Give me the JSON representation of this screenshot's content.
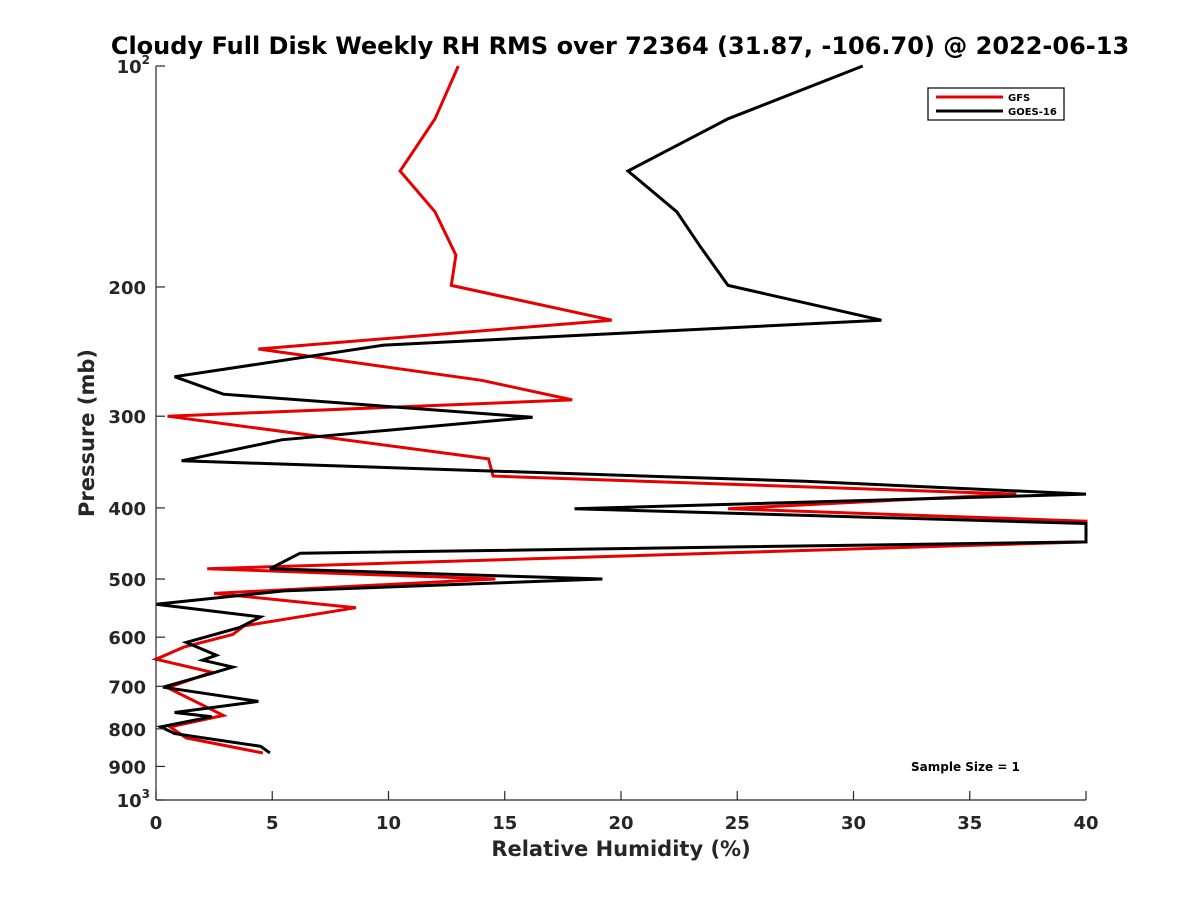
{
  "chart_data": {
    "type": "line",
    "title": "Cloudy Full Disk Weekly RH RMS over 72364 (31.87, -106.70) @ 2022-06-13",
    "xlabel": "Relative Humidity (%)",
    "ylabel": "Pressure (mb)",
    "xlim": [
      0,
      40
    ],
    "ylim": [
      100,
      1000
    ],
    "y_scale": "log",
    "y_reversed": true,
    "grid": false,
    "legend_position": "top-right",
    "x_ticks": [
      "0",
      "5",
      "10",
      "15",
      "20",
      "25",
      "30",
      "35",
      "40"
    ],
    "y_ticks": [
      {
        "value": 100,
        "label": "10",
        "exp": "2"
      },
      {
        "value": 200,
        "label": "200",
        "exp": ""
      },
      {
        "value": 300,
        "label": "300",
        "exp": ""
      },
      {
        "value": 400,
        "label": "400",
        "exp": ""
      },
      {
        "value": 500,
        "label": "500",
        "exp": ""
      },
      {
        "value": 600,
        "label": "600",
        "exp": ""
      },
      {
        "value": 700,
        "label": "700",
        "exp": ""
      },
      {
        "value": 800,
        "label": "800",
        "exp": ""
      },
      {
        "value": 900,
        "label": "900",
        "exp": ""
      },
      {
        "value": 1000,
        "label": "10",
        "exp": "3"
      }
    ],
    "annotation": "Sample Size = 1",
    "series": [
      {
        "name": "GFS",
        "color": "#e60000",
        "points": [
          [
            13.0,
            100
          ],
          [
            12.0,
            118
          ],
          [
            10.5,
            139
          ],
          [
            12.0,
            158
          ],
          [
            12.9,
            181
          ],
          [
            12.7,
            199
          ],
          [
            19.6,
            222
          ],
          [
            4.4,
            243
          ],
          [
            14.0,
            268
          ],
          [
            17.9,
            285
          ],
          [
            0.5,
            300
          ],
          [
            14.3,
            343
          ],
          [
            14.5,
            362
          ],
          [
            37.0,
            383
          ],
          [
            24.6,
            401
          ],
          [
            40.0,
            417
          ],
          [
            40.0,
            445
          ],
          [
            2.2,
            484
          ],
          [
            14.6,
            500
          ],
          [
            2.5,
            523
          ],
          [
            8.6,
            547
          ],
          [
            3.8,
            579
          ],
          [
            3.3,
            595
          ],
          [
            1.2,
            619
          ],
          [
            0.0,
            643
          ],
          [
            2.4,
            670
          ],
          [
            0.5,
            703
          ],
          [
            2.9,
            767
          ],
          [
            0.6,
            795
          ],
          [
            1.3,
            823
          ],
          [
            4.6,
            863
          ]
        ]
      },
      {
        "name": "GOES-16",
        "color": "#000000",
        "points": [
          [
            30.4,
            100
          ],
          [
            24.6,
            118
          ],
          [
            20.3,
            139
          ],
          [
            22.4,
            158
          ],
          [
            23.4,
            176
          ],
          [
            24.6,
            199
          ],
          [
            31.2,
            222
          ],
          [
            9.8,
            240
          ],
          [
            0.8,
            265
          ],
          [
            2.9,
            280
          ],
          [
            16.2,
            301
          ],
          [
            5.4,
            323
          ],
          [
            1.1,
            345
          ],
          [
            27.9,
            368
          ],
          [
            40.0,
            383
          ],
          [
            18.0,
            401
          ],
          [
            40.0,
            420
          ],
          [
            40.0,
            445
          ],
          [
            6.2,
            461
          ],
          [
            4.9,
            484
          ],
          [
            19.2,
            500
          ],
          [
            5.5,
            519
          ],
          [
            0.0,
            541
          ],
          [
            4.5,
            563
          ],
          [
            3.6,
            582
          ],
          [
            1.3,
            610
          ],
          [
            2.6,
            635
          ],
          [
            2.0,
            645
          ],
          [
            3.3,
            659
          ],
          [
            2.4,
            672
          ],
          [
            0.3,
            702
          ],
          [
            4.4,
            734
          ],
          [
            0.8,
            760
          ],
          [
            2.4,
            770
          ],
          [
            0.2,
            795
          ],
          [
            0.8,
            812
          ],
          [
            4.5,
            845
          ],
          [
            4.9,
            863
          ]
        ]
      }
    ]
  }
}
